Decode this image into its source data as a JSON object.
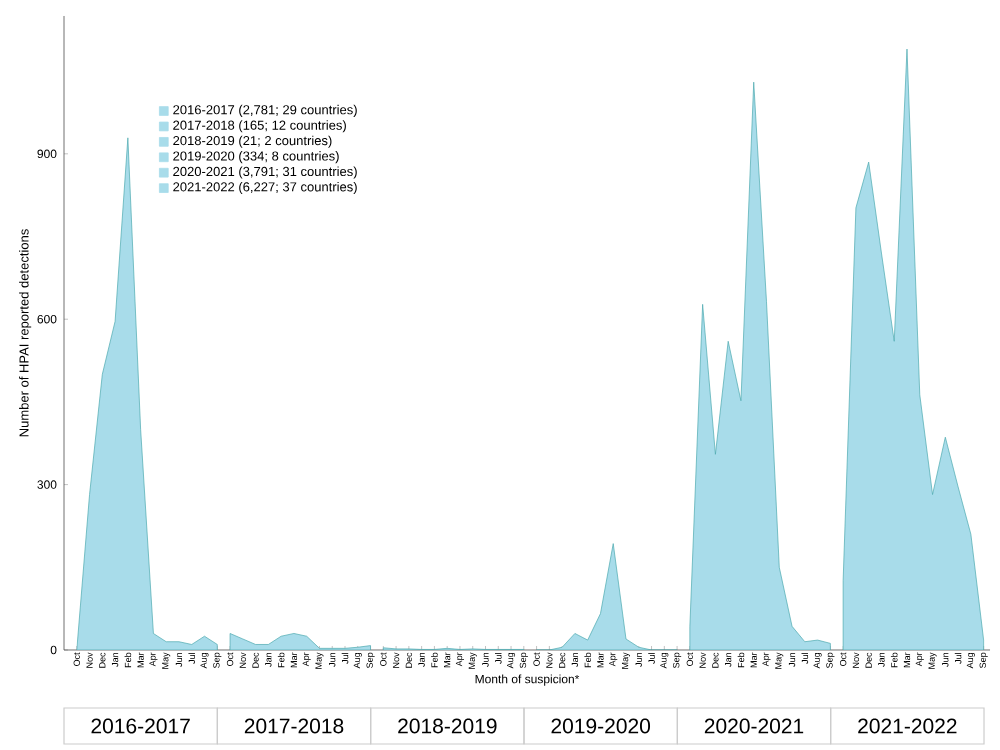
{
  "chart_data": {
    "type": "area",
    "xlabel": "Month of suspicion*",
    "ylabel": "Number of HPAI reported detections",
    "categories": [
      "Oct",
      "Nov",
      "Dec",
      "Jan",
      "Feb",
      "Mar",
      "Apr",
      "May",
      "Jun",
      "Jul",
      "Aug",
      "Sep",
      "Oct",
      "Nov",
      "Dec",
      "Jan",
      "Feb",
      "Mar",
      "Apr",
      "May",
      "Jun",
      "Jul",
      "Aug",
      "Sep",
      "Oct",
      "Nov",
      "Dec",
      "Jan",
      "Feb",
      "Mar",
      "Apr",
      "May",
      "Jun",
      "Jul",
      "Aug",
      "Sep",
      "Oct",
      "Nov",
      "Dec",
      "Jan",
      "Feb",
      "Mar",
      "Apr",
      "May",
      "Jun",
      "Jul",
      "Aug",
      "Sep",
      "Oct",
      "Nov",
      "Dec",
      "Jan",
      "Feb",
      "Mar",
      "Apr",
      "May",
      "Jun",
      "Jul",
      "Aug",
      "Sep",
      "Oct",
      "Nov",
      "Dec",
      "Jan",
      "Feb",
      "Mar",
      "Apr",
      "May",
      "Jun",
      "Jul",
      "Aug",
      "Sep"
    ],
    "series": [
      {
        "name": "2016-2017 (2,781; 29 countries)",
        "color": "#a8dcea",
        "values": [
          0,
          282,
          500,
          596,
          929,
          400,
          30,
          15,
          15,
          10,
          25,
          10,
          null,
          null,
          null,
          null,
          null,
          null,
          null,
          null,
          null,
          null,
          null,
          null,
          null,
          null,
          null,
          null,
          null,
          null,
          null,
          null,
          null,
          null,
          null,
          null,
          null,
          null,
          null,
          null,
          null,
          null,
          null,
          null,
          null,
          null,
          null,
          null,
          null,
          null,
          null,
          null,
          null,
          null,
          null,
          null,
          null,
          null,
          null,
          null,
          null,
          null,
          null,
          null,
          null,
          null,
          null,
          null,
          null,
          null,
          null,
          null
        ]
      },
      {
        "name": "2017-2018 (165; 12 countries)",
        "color": "#a8dcea",
        "values": [
          null,
          null,
          null,
          null,
          null,
          null,
          null,
          null,
          null,
          null,
          null,
          null,
          30,
          20,
          10,
          10,
          25,
          30,
          25,
          3,
          3,
          3,
          5,
          8,
          null,
          null,
          null,
          null,
          null,
          null,
          null,
          null,
          null,
          null,
          null,
          null,
          null,
          null,
          null,
          null,
          null,
          null,
          null,
          null,
          null,
          null,
          null,
          null,
          null,
          null,
          null,
          null,
          null,
          null,
          null,
          null,
          null,
          null,
          null,
          null,
          null,
          null,
          null,
          null,
          null,
          null,
          null,
          null,
          null,
          null,
          null,
          null
        ]
      },
      {
        "name": "2018-2019 (21; 2 countries)",
        "color": "#a8dcea",
        "values": [
          null,
          null,
          null,
          null,
          null,
          null,
          null,
          null,
          null,
          null,
          null,
          null,
          null,
          null,
          null,
          null,
          null,
          null,
          null,
          null,
          null,
          null,
          null,
          null,
          4,
          2,
          2,
          1,
          1,
          3,
          1,
          2,
          1,
          1,
          1,
          1,
          null,
          null,
          null,
          null,
          null,
          null,
          null,
          null,
          null,
          null,
          null,
          null,
          null,
          null,
          null,
          null,
          null,
          null,
          null,
          null,
          null,
          null,
          null,
          null,
          null,
          null,
          null,
          null,
          null,
          null,
          null,
          null,
          null,
          null,
          null,
          null
        ]
      },
      {
        "name": "2019-2020 (334; 8 countries)",
        "color": "#a8dcea",
        "values": [
          null,
          null,
          null,
          null,
          null,
          null,
          null,
          null,
          null,
          null,
          null,
          null,
          null,
          null,
          null,
          null,
          null,
          null,
          null,
          null,
          null,
          null,
          null,
          null,
          null,
          null,
          null,
          null,
          null,
          null,
          null,
          null,
          null,
          null,
          null,
          null,
          0,
          0,
          5,
          30,
          18,
          66,
          193,
          20,
          5,
          0,
          0,
          0,
          null,
          null,
          null,
          null,
          null,
          null,
          null,
          null,
          null,
          null,
          null,
          null,
          null,
          null,
          null,
          null,
          null,
          null,
          null,
          null,
          null,
          null,
          null,
          null
        ]
      },
      {
        "name": "2020-2021 (3,791; 31 countries)",
        "color": "#a8dcea",
        "values": [
          null,
          null,
          null,
          null,
          null,
          null,
          null,
          null,
          null,
          null,
          null,
          null,
          null,
          null,
          null,
          null,
          null,
          null,
          null,
          null,
          null,
          null,
          null,
          null,
          null,
          null,
          null,
          null,
          null,
          null,
          null,
          null,
          null,
          null,
          null,
          null,
          null,
          null,
          null,
          null,
          null,
          null,
          null,
          null,
          null,
          null,
          null,
          null,
          43,
          627,
          355,
          560,
          452,
          1030,
          632,
          150,
          43,
          15,
          18,
          12,
          null,
          null,
          null,
          null,
          null,
          null,
          null,
          null,
          null,
          null,
          null,
          null
        ]
      },
      {
        "name": "2021-2022 (6,227; 37 countries)",
        "color": "#a8dcea",
        "values": [
          null,
          null,
          null,
          null,
          null,
          null,
          null,
          null,
          null,
          null,
          null,
          null,
          null,
          null,
          null,
          null,
          null,
          null,
          null,
          null,
          null,
          null,
          null,
          null,
          null,
          null,
          null,
          null,
          null,
          null,
          null,
          null,
          null,
          null,
          null,
          null,
          null,
          null,
          null,
          null,
          null,
          null,
          null,
          null,
          null,
          null,
          null,
          null,
          null,
          null,
          null,
          null,
          null,
          null,
          null,
          null,
          null,
          null,
          null,
          null,
          126,
          802,
          885,
          720,
          560,
          1090,
          463,
          282,
          386,
          296,
          210,
          18
        ]
      }
    ],
    "ylim": [
      0,
      1150
    ],
    "yticks": [
      0,
      300,
      600,
      900
    ],
    "legend": "top left",
    "annotations": [
      "2016-2017",
      "2017-2018",
      "2018-2019",
      "2019-2020",
      "2020-2021",
      "2021-2022"
    ]
  }
}
